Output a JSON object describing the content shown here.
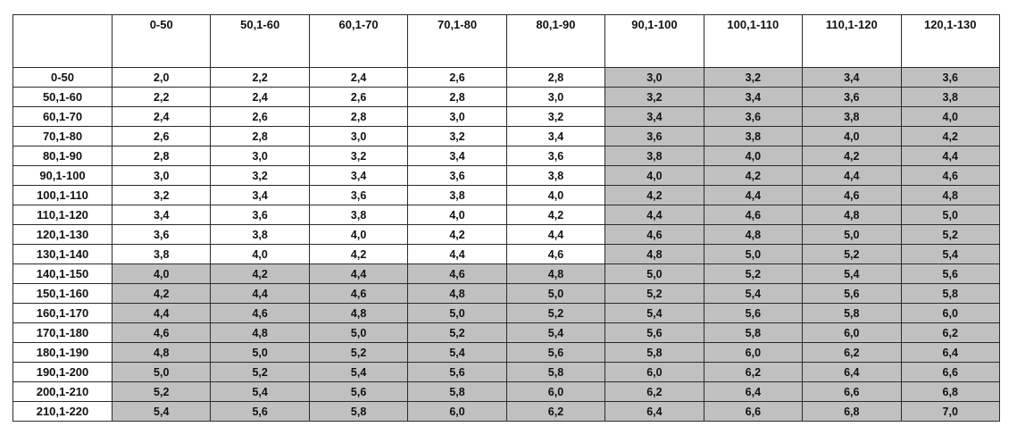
{
  "table": {
    "corner": "",
    "highlight_color": "#c0c0c0",
    "columns": [
      "0-50",
      "50,1-60",
      "60,1-70",
      "70,1-80",
      "80,1-90",
      "90,1-100",
      "100,1-110",
      "110,1-120",
      "120,1-130"
    ],
    "rows": [
      {
        "label": "0-50",
        "values": [
          "2,0",
          "2,2",
          "2,4",
          "2,6",
          "2,8",
          "3,0",
          "3,2",
          "3,4",
          "3,6"
        ],
        "shaded": [
          false,
          false,
          false,
          false,
          false,
          true,
          true,
          true,
          true
        ]
      },
      {
        "label": "50,1-60",
        "values": [
          "2,2",
          "2,4",
          "2,6",
          "2,8",
          "3,0",
          "3,2",
          "3,4",
          "3,6",
          "3,8"
        ],
        "shaded": [
          false,
          false,
          false,
          false,
          false,
          true,
          true,
          true,
          true
        ]
      },
      {
        "label": "60,1-70",
        "values": [
          "2,4",
          "2,6",
          "2,8",
          "3,0",
          "3,2",
          "3,4",
          "3,6",
          "3,8",
          "4,0"
        ],
        "shaded": [
          false,
          false,
          false,
          false,
          false,
          true,
          true,
          true,
          true
        ]
      },
      {
        "label": "70,1-80",
        "values": [
          "2,6",
          "2,8",
          "3,0",
          "3,2",
          "3,4",
          "3,6",
          "3,8",
          "4,0",
          "4,2"
        ],
        "shaded": [
          false,
          false,
          false,
          false,
          false,
          true,
          true,
          true,
          true
        ]
      },
      {
        "label": "80,1-90",
        "values": [
          "2,8",
          "3,0",
          "3,2",
          "3,4",
          "3,6",
          "3,8",
          "4,0",
          "4,2",
          "4,4"
        ],
        "shaded": [
          false,
          false,
          false,
          false,
          false,
          true,
          true,
          true,
          true
        ]
      },
      {
        "label": "90,1-100",
        "values": [
          "3,0",
          "3,2",
          "3,4",
          "3,6",
          "3,8",
          "4,0",
          "4,2",
          "4,4",
          "4,6"
        ],
        "shaded": [
          false,
          false,
          false,
          false,
          false,
          true,
          true,
          true,
          true
        ]
      },
      {
        "label": "100,1-110",
        "values": [
          "3,2",
          "3,4",
          "3,6",
          "3,8",
          "4,0",
          "4,2",
          "4,4",
          "4,6",
          "4,8"
        ],
        "shaded": [
          false,
          false,
          false,
          false,
          false,
          true,
          true,
          true,
          true
        ]
      },
      {
        "label": "110,1-120",
        "values": [
          "3,4",
          "3,6",
          "3,8",
          "4,0",
          "4,2",
          "4,4",
          "4,6",
          "4,8",
          "5,0"
        ],
        "shaded": [
          false,
          false,
          false,
          false,
          false,
          true,
          true,
          true,
          true
        ]
      },
      {
        "label": "120,1-130",
        "values": [
          "3,6",
          "3,8",
          "4,0",
          "4,2",
          "4,4",
          "4,6",
          "4,8",
          "5,0",
          "5,2"
        ],
        "shaded": [
          false,
          false,
          false,
          false,
          false,
          true,
          true,
          true,
          true
        ]
      },
      {
        "label": "130,1-140",
        "values": [
          "3,8",
          "4,0",
          "4,2",
          "4,4",
          "4,6",
          "4,8",
          "5,0",
          "5,2",
          "5,4"
        ],
        "shaded": [
          false,
          false,
          false,
          false,
          false,
          true,
          true,
          true,
          true
        ]
      },
      {
        "label": "140,1-150",
        "values": [
          "4,0",
          "4,2",
          "4,4",
          "4,6",
          "4,8",
          "5,0",
          "5,2",
          "5,4",
          "5,6"
        ],
        "shaded": [
          true,
          true,
          true,
          true,
          true,
          true,
          true,
          true,
          true
        ]
      },
      {
        "label": "150,1-160",
        "values": [
          "4,2",
          "4,4",
          "4,6",
          "4,8",
          "5,0",
          "5,2",
          "5,4",
          "5,6",
          "5,8"
        ],
        "shaded": [
          true,
          true,
          true,
          true,
          true,
          true,
          true,
          true,
          true
        ]
      },
      {
        "label": "160,1-170",
        "values": [
          "4,4",
          "4,6",
          "4,8",
          "5,0",
          "5,2",
          "5,4",
          "5,6",
          "5,8",
          "6,0"
        ],
        "shaded": [
          true,
          true,
          true,
          true,
          true,
          true,
          true,
          true,
          true
        ]
      },
      {
        "label": "170,1-180",
        "values": [
          "4,6",
          "4,8",
          "5,0",
          "5,2",
          "5,4",
          "5,6",
          "5,8",
          "6,0",
          "6,2"
        ],
        "shaded": [
          true,
          true,
          true,
          true,
          true,
          true,
          true,
          true,
          true
        ]
      },
      {
        "label": "180,1-190",
        "values": [
          "4,8",
          "5,0",
          "5,2",
          "5,4",
          "5,6",
          "5,8",
          "6,0",
          "6,2",
          "6,4"
        ],
        "shaded": [
          true,
          true,
          true,
          true,
          true,
          true,
          true,
          true,
          true
        ]
      },
      {
        "label": "190,1-200",
        "values": [
          "5,0",
          "5,2",
          "5,4",
          "5,6",
          "5,8",
          "6,0",
          "6,2",
          "6,4",
          "6,6"
        ],
        "shaded": [
          true,
          true,
          true,
          true,
          true,
          true,
          true,
          true,
          true
        ]
      },
      {
        "label": "200,1-210",
        "values": [
          "5,2",
          "5,4",
          "5,6",
          "5,8",
          "6,0",
          "6,2",
          "6,4",
          "6,6",
          "6,8"
        ],
        "shaded": [
          true,
          true,
          true,
          true,
          true,
          true,
          true,
          true,
          true
        ]
      },
      {
        "label": "210,1-220",
        "values": [
          "5,4",
          "5,6",
          "5,8",
          "6,0",
          "6,2",
          "6,4",
          "6,6",
          "6,8",
          "7,0"
        ],
        "shaded": [
          true,
          true,
          true,
          true,
          true,
          true,
          true,
          true,
          true
        ]
      }
    ]
  }
}
